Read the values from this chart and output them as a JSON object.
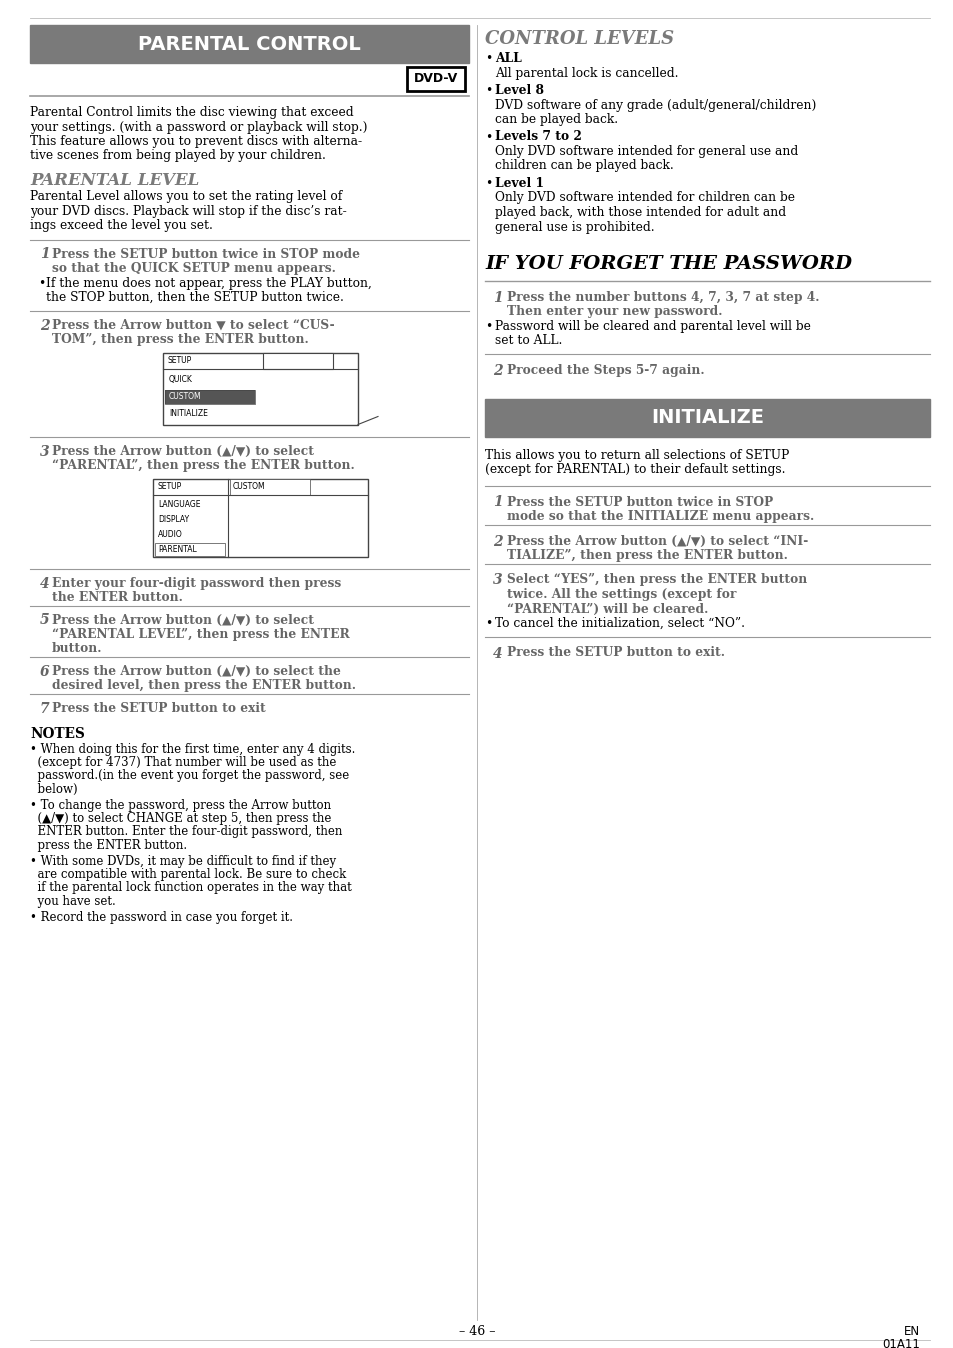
{
  "page_bg": "#ffffff",
  "header_bg": "#7a7a7a",
  "header_text_color": "#ffffff",
  "heading_gray": "#7a7a7a",
  "step_gray": "#666666",
  "divider_color": "#999999",
  "text_color": "#000000",
  "parental_control_header": "PARENTAL CONTROL",
  "dvdv_label": "DVD-V",
  "parental_level_heading": "PARENTAL LEVEL",
  "control_levels_heading": "CONTROL LEVELS",
  "forget_heading": "IF YOU FORGET THE PASSWORD",
  "initialize_heading": "INITIALIZE",
  "page_number": "– 46 –",
  "page_code1": "EN",
  "page_code2": "01A11"
}
